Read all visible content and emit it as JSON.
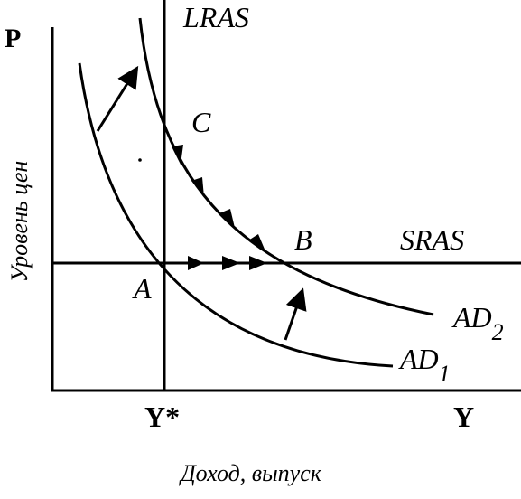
{
  "axes": {
    "y_symbol": "P",
    "x_symbol": "Y",
    "y_label": "Уровень цен",
    "x_label": "Доход, выпуск",
    "potential_output": "Y*"
  },
  "curves": {
    "lras": "LRAS",
    "sras": "SRAS",
    "ad1": {
      "main": "AD",
      "sub": "1"
    },
    "ad2": {
      "main": "AD",
      "sub": "2"
    }
  },
  "points": {
    "a": "A",
    "b": "B",
    "c": "C"
  }
}
